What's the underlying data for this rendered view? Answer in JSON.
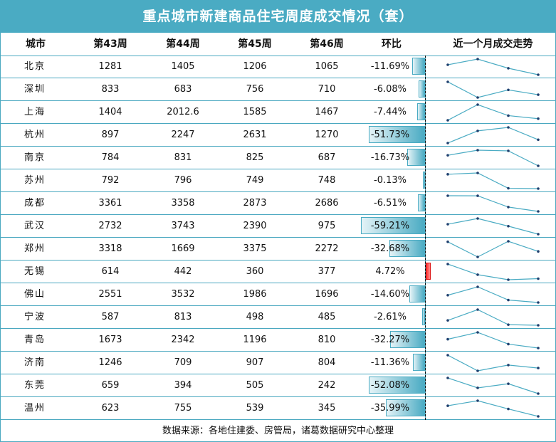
{
  "title": "重点城市新建商品住宅周度成交情况（套）",
  "headers": [
    "城市",
    "第43周",
    "第44周",
    "第45周",
    "第46周",
    "环比",
    "近一个月成交走势"
  ],
  "rows": [
    {
      "city": "北京",
      "w43": "1281",
      "w44": "1405",
      "w45": "1206",
      "w46": "1065",
      "change": "-11.69%"
    },
    {
      "city": "深圳",
      "w43": "833",
      "w44": "683",
      "w45": "756",
      "w46": "710",
      "change": "-6.08%"
    },
    {
      "city": "上海",
      "w43": "1404",
      "w44": "2012.6",
      "w45": "1585",
      "w46": "1467",
      "change": "-7.44%"
    },
    {
      "city": "杭州",
      "w43": "897",
      "w44": "2247",
      "w45": "2631",
      "w46": "1270",
      "change": "-51.73%"
    },
    {
      "city": "南京",
      "w43": "784",
      "w44": "831",
      "w45": "825",
      "w46": "687",
      "change": "-16.73%"
    },
    {
      "city": "苏州",
      "w43": "792",
      "w44": "796",
      "w45": "749",
      "w46": "748",
      "change": "-0.13%"
    },
    {
      "city": "成都",
      "w43": "3361",
      "w44": "3358",
      "w45": "2873",
      "w46": "2686",
      "change": "-6.51%"
    },
    {
      "city": "武汉",
      "w43": "2732",
      "w44": "3743",
      "w45": "2390",
      "w46": "975",
      "change": "-59.21%"
    },
    {
      "city": "郑州",
      "w43": "3318",
      "w44": "1669",
      "w45": "3375",
      "w46": "2272",
      "change": "-32.68%"
    },
    {
      "city": "无锡",
      "w43": "614",
      "w44": "442",
      "w45": "360",
      "w46": "377",
      "change": "4.72%"
    },
    {
      "city": "佛山",
      "w43": "2551",
      "w44": "3532",
      "w45": "1986",
      "w46": "1696",
      "change": "-14.60%"
    },
    {
      "city": "宁波",
      "w43": "587",
      "w44": "813",
      "w45": "498",
      "w46": "485",
      "change": "-2.61%"
    },
    {
      "city": "青岛",
      "w43": "1673",
      "w44": "2342",
      "w45": "1196",
      "w46": "810",
      "change": "-32.27%"
    },
    {
      "city": "济南",
      "w43": "1246",
      "w44": "709",
      "w45": "907",
      "w46": "804",
      "change": "-11.36%"
    },
    {
      "city": "东莞",
      "w43": "659",
      "w44": "394",
      "w45": "505",
      "w46": "242",
      "change": "-52.08%"
    },
    {
      "city": "温州",
      "w43": "623",
      "w44": "755",
      "w45": "539",
      "w46": "345",
      "change": "-35.99%"
    }
  ],
  "footer": "数据来源：各地住建委、房管局，诸葛数据研究中心整理",
  "colors": {
    "accent": "#4aabc3",
    "negative_bar": "#4aabc3",
    "positive_bar": "#ff3333",
    "sparkline": "#4aabc3",
    "sparkline_point": "#1f3f6e"
  },
  "chart_data": {
    "type": "table",
    "title": "重点城市新建商品住宅周度成交情况（套）",
    "columns": [
      "城市",
      "第43周",
      "第44周",
      "第45周",
      "第46周",
      "环比",
      "近一个月成交走势"
    ],
    "categories": [
      "北京",
      "深圳",
      "上海",
      "杭州",
      "南京",
      "苏州",
      "成都",
      "武汉",
      "郑州",
      "无锡",
      "佛山",
      "宁波",
      "青岛",
      "济南",
      "东莞",
      "温州"
    ],
    "series": [
      {
        "name": "第43周",
        "values": [
          1281,
          833,
          1404,
          897,
          784,
          792,
          3361,
          2732,
          3318,
          614,
          2551,
          587,
          1673,
          1246,
          659,
          623
        ]
      },
      {
        "name": "第44周",
        "values": [
          1405,
          683,
          2012.6,
          2247,
          831,
          796,
          3358,
          3743,
          1669,
          442,
          3532,
          813,
          2342,
          709,
          394,
          755
        ]
      },
      {
        "name": "第45周",
        "values": [
          1206,
          756,
          1585,
          2631,
          825,
          749,
          2873,
          2390,
          3375,
          360,
          1986,
          498,
          1196,
          907,
          505,
          539
        ]
      },
      {
        "name": "第46周",
        "values": [
          1065,
          710,
          1467,
          1270,
          687,
          748,
          2686,
          975,
          2272,
          377,
          1696,
          485,
          810,
          804,
          242,
          345
        ]
      },
      {
        "name": "环比(%)",
        "values": [
          -11.69,
          -6.08,
          -7.44,
          -51.73,
          -16.73,
          -0.13,
          -6.51,
          -59.21,
          -32.68,
          4.72,
          -14.6,
          -2.61,
          -32.27,
          -11.36,
          -52.08,
          -35.99
        ]
      }
    ],
    "annotations": [
      "环比 shown as data bars (negative teal to left of axis, positive red to right)",
      "近一个月成交走势 shown as per-row sparklines of weeks 43-46"
    ],
    "source": "数据来源：各地住建委、房管局，诸葛数据研究中心整理"
  }
}
